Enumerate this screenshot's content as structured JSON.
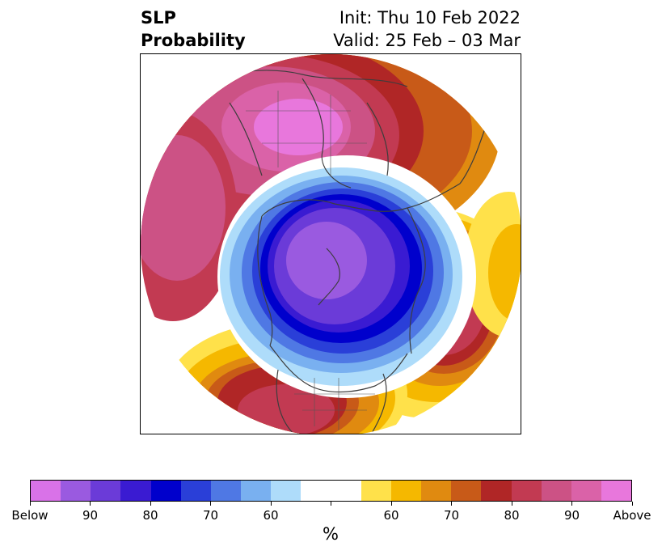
{
  "header": {
    "title_line1": "SLP",
    "title_line2": "Probability",
    "init": "Init: Thu 10 Feb 2022",
    "valid": "Valid: 25 Feb – 03 Mar"
  },
  "map": {
    "projection": "north-polar-stereographic",
    "variable": "sea level pressure probability"
  },
  "colorbar": {
    "unit": "%",
    "colors": [
      "#d972e8",
      "#9a5ae0",
      "#6b3bd8",
      "#3a1bd2",
      "#0000cc",
      "#2a3fd8",
      "#4f78e4",
      "#79b0f0",
      "#aedcfa",
      "#ffffff",
      "#ffffff",
      "#ffe14a",
      "#f5b800",
      "#e08a10",
      "#c85a18",
      "#b02626",
      "#c23a52",
      "#cc5285",
      "#da62a8",
      "#e877dc"
    ],
    "labels": [
      "Below",
      "90",
      "80",
      "70",
      "60",
      "60",
      "70",
      "80",
      "90",
      "Above"
    ]
  }
}
